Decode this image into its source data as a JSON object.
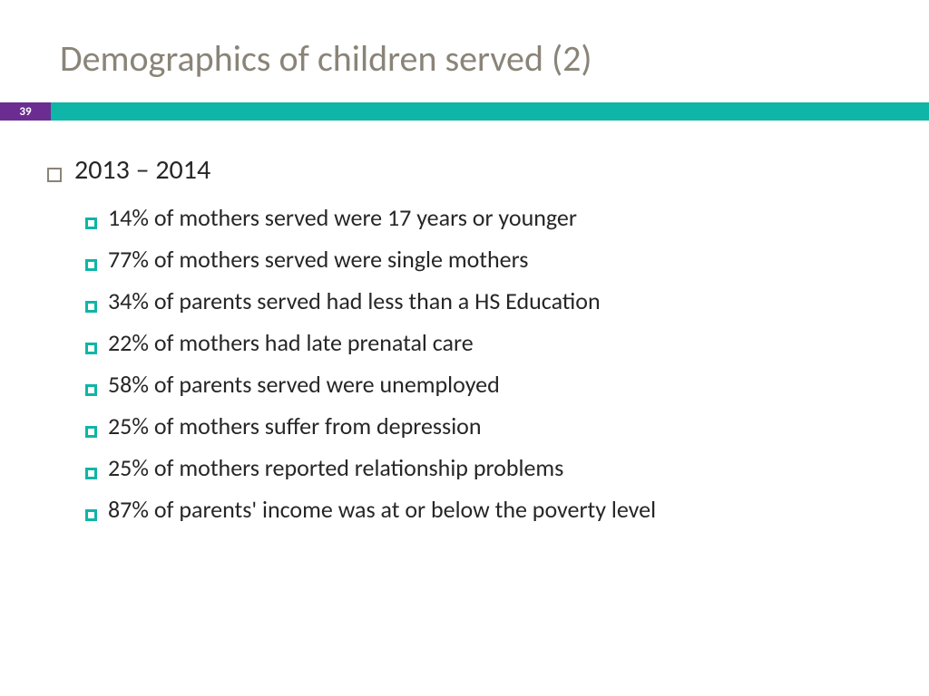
{
  "title": "Demographics of children served (2)",
  "page_number": "39",
  "colors": {
    "title_text": "#8a8478",
    "body_text": "#262626",
    "accent_purple": "#6b2d91",
    "accent_teal": "#0fb5a6",
    "top_bullet_border": "#8a8478",
    "sub_bullet_border": "#0fb5a6",
    "background": "#ffffff"
  },
  "typography": {
    "title_fontsize": 40,
    "top_item_fontsize": 30,
    "sub_item_fontsize": 26,
    "page_number_fontsize": 13,
    "font_family": "Calibri"
  },
  "content": {
    "period": "2013 – 2014",
    "stats": [
      "14% of mothers served were 17 years or younger",
      "77% of mothers served were single mothers",
      "34% of parents served had less than a HS Education",
      "22% of mothers had late prenatal care",
      "58% of parents served were unemployed",
      "25% of mothers suffer from depression",
      "25% of mothers reported relationship problems",
      "87% of parents' income was at or below the poverty level"
    ]
  }
}
